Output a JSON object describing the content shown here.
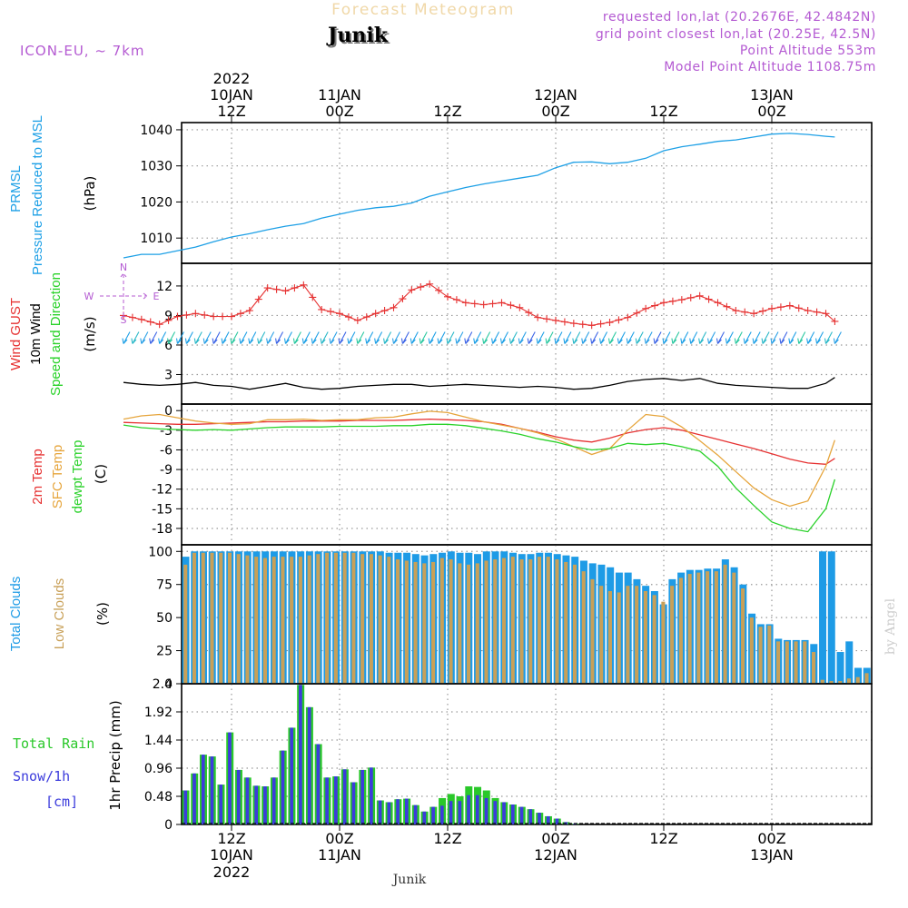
{
  "header": {
    "title_faded": "Forecast Meteogram",
    "location": "Junik",
    "model": "ICON-EU, ~ 7km",
    "requested": "requested lon,lat (20.2676E, 42.4842N)",
    "gridpoint": "grid point closest lon,lat (20.25E, 42.5N)",
    "point_alt": "Point Altitude 553m",
    "model_alt": "Model Point Altitude 1108.75m",
    "footer_location": "Junik",
    "credit": "by Angel"
  },
  "time_axis": {
    "top_year": "2022",
    "bottom_year": "2022",
    "ticks": [
      {
        "t": 12,
        "l1": "10JAN",
        "l2": "12Z"
      },
      {
        "t": 24,
        "l1": "11JAN",
        "l2": "00Z"
      },
      {
        "t": 36,
        "l1": "",
        "l2": "12Z"
      },
      {
        "t": 48,
        "l1": "12JAN",
        "l2": "00Z"
      },
      {
        "t": 60,
        "l1": "",
        "l2": "12Z"
      },
      {
        "t": 72,
        "l1": "13JAN",
        "l2": "00Z"
      }
    ],
    "bottom_ticks": [
      {
        "t": 12,
        "l1": "12Z",
        "l2": "10JAN"
      },
      {
        "t": 24,
        "l1": "00Z",
        "l2": "11JAN"
      },
      {
        "t": 36,
        "l1": "12Z",
        "l2": ""
      },
      {
        "t": 48,
        "l1": "00Z",
        "l2": "12JAN"
      },
      {
        "t": 60,
        "l1": "12Z",
        "l2": ""
      },
      {
        "t": 72,
        "l1": "00Z",
        "l2": "13JAN"
      }
    ]
  },
  "colors": {
    "pressure": "#1ea0e6",
    "gust": "#e63232",
    "wind": "#000000",
    "t2m": "#e63232",
    "tsfc": "#e6a53c",
    "dewpt": "#2ad22a",
    "total_clouds": "#1e9be6",
    "low_clouds": "#c8a058",
    "rain": "#2ac82a",
    "snow": "#3c3cdc",
    "label_purple": "#b45ad2"
  },
  "chart_data": [
    {
      "type": "line",
      "panel": "pressure",
      "title": "PRMSL Pressure Reduced to MSL",
      "ylabel": "(hPa)",
      "ylabel_lines": [
        "PRMSL",
        "Pressure Reduced to MSL"
      ],
      "ylim": [
        1003,
        1042
      ],
      "yticks": [
        1010,
        1020,
        1030,
        1040
      ],
      "x": [
        0,
        2,
        4,
        6,
        8,
        10,
        12,
        14,
        16,
        18,
        20,
        22,
        24,
        26,
        28,
        30,
        32,
        34,
        36,
        38,
        40,
        42,
        44,
        46,
        48,
        50,
        52,
        54,
        56,
        58,
        60,
        62,
        64,
        66,
        68,
        70,
        72,
        74,
        76,
        78,
        79
      ],
      "values": [
        1004.5,
        1005.5,
        1005.5,
        1006.5,
        1007.5,
        1009,
        1010.3,
        1011.2,
        1012.3,
        1013.3,
        1014,
        1015.5,
        1016.6,
        1017.7,
        1018.4,
        1018.8,
        1019.7,
        1021.6,
        1022.8,
        1024,
        1025,
        1025.8,
        1026.6,
        1027.4,
        1029.5,
        1031,
        1031.1,
        1030.6,
        1031,
        1032.1,
        1034.2,
        1035.3,
        1036,
        1036.8,
        1037.2,
        1038,
        1038.8,
        1039,
        1038.7,
        1038.2,
        1038
      ]
    },
    {
      "type": "line",
      "panel": "wind",
      "title": "Wind GUST / 10m Wind Speed and Direction",
      "ylabel": "(m/s)",
      "ylabel_lines": [
        "Wind GUST",
        "10m Wind",
        "Speed and Direction"
      ],
      "ylim": [
        0,
        14.3
      ],
      "yticks": [
        3,
        6,
        9,
        12
      ],
      "compass": [
        "N",
        "S",
        "W",
        "E"
      ],
      "x": [
        0,
        2,
        4,
        6,
        8,
        10,
        12,
        14,
        16,
        18,
        20,
        22,
        24,
        26,
        28,
        30,
        32,
        34,
        36,
        38,
        40,
        42,
        44,
        46,
        48,
        50,
        52,
        54,
        56,
        58,
        60,
        62,
        64,
        66,
        68,
        70,
        72,
        74,
        76,
        78,
        79
      ],
      "series": [
        {
          "name": "Wind GUST",
          "values": [
            9.0,
            8.6,
            8.1,
            8.9,
            9.2,
            8.9,
            8.9,
            9.5,
            11.8,
            11.5,
            12.1,
            9.6,
            9.2,
            8.5,
            9.2,
            9.8,
            11.6,
            12.2,
            10.9,
            10.3,
            10.1,
            10.3,
            9.8,
            8.8,
            8.5,
            8.2,
            8.0,
            8.3,
            8.8,
            9.7,
            10.3,
            10.6,
            11.0,
            10.3,
            9.5,
            9.2,
            9.7,
            10.0,
            9.5,
            9.2,
            8.4
          ]
        },
        {
          "name": "10m Wind",
          "values": [
            2.2,
            2.0,
            1.9,
            2.0,
            2.2,
            1.9,
            1.8,
            1.5,
            1.8,
            2.1,
            1.7,
            1.5,
            1.6,
            1.8,
            1.9,
            2.0,
            2.0,
            1.8,
            1.9,
            2.0,
            1.9,
            1.8,
            1.7,
            1.8,
            1.7,
            1.5,
            1.6,
            1.9,
            2.3,
            2.5,
            2.6,
            2.4,
            2.6,
            2.1,
            1.9,
            1.8,
            1.7,
            1.6,
            1.6,
            2.1,
            2.7
          ]
        }
      ],
      "barbs_y": 6.5
    },
    {
      "type": "line",
      "panel": "temperature",
      "title": "2m Temp / SFC Temp / dewpt Temp",
      "ylabel": "(C)",
      "ylabel_lines": [
        "2m Temp",
        "SFC Temp",
        "dewpt Temp"
      ],
      "ylim": [
        -20.5,
        1
      ],
      "yticks": [
        0,
        -3,
        -6,
        -9,
        -12,
        -15,
        -18
      ],
      "x": [
        0,
        2,
        4,
        6,
        8,
        10,
        12,
        14,
        16,
        18,
        20,
        22,
        24,
        26,
        28,
        30,
        32,
        34,
        36,
        38,
        40,
        42,
        44,
        46,
        48,
        50,
        52,
        54,
        56,
        58,
        60,
        62,
        64,
        66,
        68,
        70,
        72,
        74,
        76,
        78,
        79
      ],
      "series": [
        {
          "name": "2m Temp",
          "values": [
            -1.8,
            -1.9,
            -2.0,
            -2.1,
            -2.1,
            -2.0,
            -1.9,
            -1.8,
            -1.7,
            -1.7,
            -1.6,
            -1.6,
            -1.6,
            -1.5,
            -1.5,
            -1.5,
            -1.4,
            -1.3,
            -1.4,
            -1.5,
            -1.7,
            -2.1,
            -2.7,
            -3.3,
            -4.0,
            -4.5,
            -4.8,
            -4.2,
            -3.4,
            -2.9,
            -2.6,
            -3.0,
            -3.7,
            -4.4,
            -5.1,
            -5.8,
            -6.6,
            -7.4,
            -8.0,
            -8.2,
            -7.3
          ]
        },
        {
          "name": "SFC Temp",
          "values": [
            -1.3,
            -0.8,
            -0.6,
            -1.1,
            -1.6,
            -1.9,
            -2.1,
            -2.0,
            -1.4,
            -1.4,
            -1.3,
            -1.5,
            -1.4,
            -1.4,
            -1.1,
            -1.0,
            -0.5,
            -0.1,
            -0.3,
            -1.0,
            -1.7,
            -2.2,
            -2.7,
            -3.4,
            -4.3,
            -5.5,
            -6.7,
            -5.8,
            -3.0,
            -0.6,
            -0.9,
            -2.5,
            -4.6,
            -6.8,
            -9.3,
            -11.8,
            -13.6,
            -14.6,
            -13.8,
            -8.5,
            -4.5
          ]
        },
        {
          "name": "dewpt Temp",
          "values": [
            -2.2,
            -2.6,
            -2.8,
            -2.9,
            -3.0,
            -2.9,
            -3.0,
            -2.8,
            -2.6,
            -2.5,
            -2.5,
            -2.5,
            -2.4,
            -2.4,
            -2.4,
            -2.3,
            -2.3,
            -2.1,
            -2.1,
            -2.3,
            -2.7,
            -3.1,
            -3.6,
            -4.3,
            -4.8,
            -5.5,
            -6.0,
            -5.8,
            -5.0,
            -5.2,
            -5.0,
            -5.5,
            -6.2,
            -8.5,
            -11.8,
            -14.5,
            -17.0,
            -18.0,
            -18.5,
            -15.0,
            -10.5
          ]
        }
      ]
    },
    {
      "type": "bar",
      "panel": "clouds",
      "title": "Total Clouds / Low Clouds",
      "ylabel": "(%)",
      "ylabel_lines": [
        "Total Clouds",
        "Low Clouds"
      ],
      "ylim": [
        0,
        105
      ],
      "yticks": [
        0,
        25,
        50,
        75,
        100
      ],
      "series": [
        {
          "name": "Total Clouds",
          "values": [
            96,
            100,
            100,
            100,
            100,
            100,
            100,
            100,
            100,
            100,
            100,
            100,
            100,
            100,
            100,
            100,
            100,
            100,
            100,
            100,
            100,
            100,
            100,
            99,
            99,
            99,
            98,
            97,
            98,
            99,
            100,
            99,
            99,
            98,
            100,
            100,
            100,
            99,
            98,
            98,
            99,
            99,
            98,
            97,
            96,
            93,
            91,
            90,
            88,
            84,
            84,
            79,
            74,
            70,
            60,
            79,
            84,
            86,
            86,
            87,
            87,
            94,
            88,
            75,
            53,
            45,
            45,
            34,
            33,
            33,
            33,
            30,
            100,
            100,
            24,
            32,
            12,
            12
          ]
        },
        {
          "name": "Low Clouds",
          "values": [
            90,
            99,
            99,
            99,
            99,
            99,
            98,
            97,
            96,
            95,
            96,
            96,
            96,
            96,
            97,
            98,
            99,
            99,
            99,
            99,
            98,
            98,
            97,
            96,
            94,
            93,
            92,
            91,
            92,
            95,
            94,
            91,
            90,
            91,
            93,
            94,
            95,
            96,
            94,
            94,
            96,
            96,
            94,
            92,
            90,
            85,
            79,
            74,
            70,
            69,
            74,
            74,
            70,
            67,
            62,
            74,
            80,
            83,
            84,
            85,
            85,
            90,
            84,
            72,
            50,
            43,
            44,
            32,
            32,
            32,
            32,
            24,
            3,
            2,
            2,
            4,
            5,
            8
          ]
        }
      ]
    },
    {
      "type": "bar",
      "panel": "precip",
      "title": "Total Rain / Snow/1h",
      "ylabel": "1hr Precip (mm)",
      "ylabel_lines": [
        "Total  Rain",
        "Snow/1h",
        "[cm]"
      ],
      "ylim": [
        0,
        2.4
      ],
      "yticks": [
        0,
        0.48,
        0.96,
        1.44,
        1.92,
        2.4
      ],
      "series": [
        {
          "name": "Total Rain",
          "values": [
            0.58,
            0.87,
            1.19,
            1.16,
            0.68,
            1.57,
            0.93,
            0.8,
            0.66,
            0.65,
            0.8,
            1.26,
            1.65,
            2.38,
            2.0,
            1.37,
            0.8,
            0.82,
            0.94,
            0.72,
            0.93,
            0.97,
            0.41,
            0.38,
            0.43,
            0.44,
            0.33,
            0.22,
            0.3,
            0.45,
            0.52,
            0.48,
            0.65,
            0.64,
            0.58,
            0.45,
            0.38,
            0.34,
            0.3,
            0.26,
            0.2,
            0.14,
            0.1,
            0.04,
            0.01,
            0,
            0,
            0,
            0,
            0,
            0,
            0,
            0,
            0,
            0,
            0,
            0,
            0,
            0,
            0,
            0,
            0,
            0,
            0,
            0,
            0,
            0,
            0,
            0,
            0,
            0,
            0,
            0,
            0,
            0,
            0,
            0,
            0
          ]
        },
        {
          "name": "Snow/1h",
          "values": [
            0.58,
            0.87,
            1.19,
            1.16,
            0.68,
            1.57,
            0.93,
            0.8,
            0.66,
            0.65,
            0.8,
            1.26,
            1.65,
            2.38,
            2.0,
            1.37,
            0.8,
            0.82,
            0.94,
            0.72,
            0.93,
            0.97,
            0.41,
            0.38,
            0.43,
            0.44,
            0.33,
            0.22,
            0.3,
            0.32,
            0.4,
            0.4,
            0.5,
            0.5,
            0.45,
            0.4,
            0.38,
            0.34,
            0.3,
            0.26,
            0.2,
            0.14,
            0.1,
            0.04,
            0.01,
            0,
            0,
            0,
            0,
            0,
            0,
            0,
            0,
            0,
            0,
            0,
            0,
            0,
            0,
            0,
            0,
            0,
            0,
            0,
            0,
            0,
            0,
            0,
            0,
            0,
            0,
            0,
            0,
            0,
            0,
            0,
            0,
            0
          ]
        }
      ]
    }
  ]
}
